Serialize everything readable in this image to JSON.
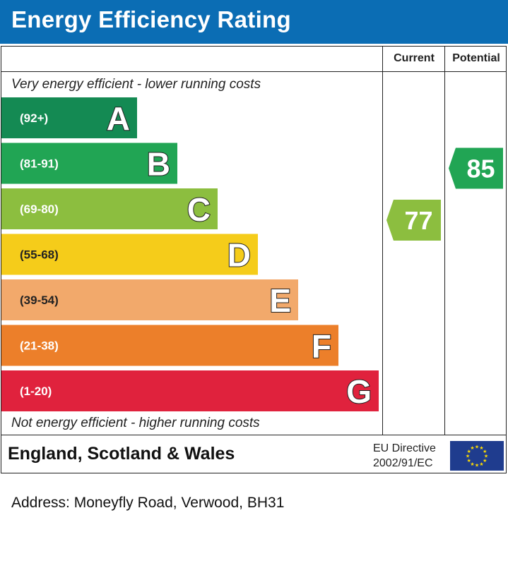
{
  "header": {
    "title": "Energy Efficiency Rating"
  },
  "columns": {
    "current": "Current",
    "potential": "Potential"
  },
  "captions": {
    "top": "Very energy efficient - lower running costs",
    "bottom": "Not energy efficient - higher running costs"
  },
  "chart_data": {
    "type": "bar",
    "categories": [
      "A",
      "B",
      "C",
      "D",
      "E",
      "F",
      "G"
    ],
    "ranges": [
      "(92+)",
      "(81-91)",
      "(69-80)",
      "(55-68)",
      "(39-54)",
      "(21-38)",
      "(1-20)"
    ],
    "colors": [
      "#148a53",
      "#21a554",
      "#8cbe3f",
      "#f5cc1a",
      "#f2a96b",
      "#ec7f2a",
      "#e0223d"
    ],
    "current": {
      "value": 77,
      "band": "C",
      "color": "#8cbe3f"
    },
    "potential": {
      "value": 85,
      "band": "B",
      "color": "#21a554"
    }
  },
  "footer": {
    "region": "England, Scotland & Wales",
    "eu_line1": "EU Directive",
    "eu_line2": "2002/91/EC",
    "flag_color": "#1f3c8e",
    "star_color": "#ffdd00"
  },
  "address": "Address: Moneyfly Road, Verwood, BH31"
}
